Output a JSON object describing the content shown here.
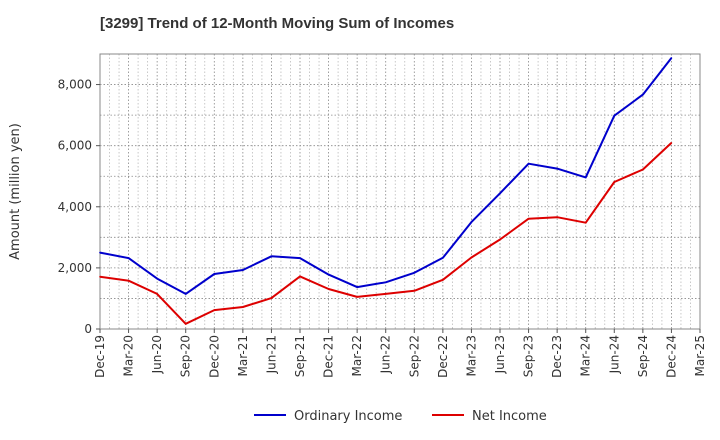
{
  "chart_data": {
    "type": "line",
    "title": "[3299]  Trend of 12-Month Moving Sum of Incomes",
    "xlabel": "",
    "ylabel": "Amount (million yen)",
    "ylim": [
      0,
      9000
    ],
    "y_ticks": [
      0,
      2000,
      4000,
      6000,
      8000
    ],
    "y_tick_labels": [
      "0",
      "2,000",
      "4,000",
      "6,000",
      "8,000"
    ],
    "categories": [
      "Dec-19",
      "Mar-20",
      "Jun-20",
      "Sep-20",
      "Dec-20",
      "Mar-21",
      "Jun-21",
      "Sep-21",
      "Dec-21",
      "Mar-22",
      "Jun-22",
      "Sep-22",
      "Dec-22",
      "Mar-23",
      "Jun-23",
      "Sep-23",
      "Dec-23",
      "Mar-24",
      "Jun-24",
      "Sep-24",
      "Dec-24",
      "Mar-25"
    ],
    "grid": true,
    "legend_position": "bottom",
    "series": [
      {
        "name": "Ordinary Income",
        "color": "#0000cc",
        "values": [
          2500,
          2320,
          1650,
          1150,
          1800,
          1930,
          2380,
          2320,
          1780,
          1370,
          1530,
          1840,
          2330,
          3500,
          4440,
          5410,
          5250,
          4960,
          6980,
          7670,
          8870,
          null
        ]
      },
      {
        "name": "Net Income",
        "color": "#dd0000",
        "values": [
          1710,
          1580,
          1150,
          170,
          620,
          720,
          1010,
          1720,
          1310,
          1050,
          1150,
          1250,
          1610,
          2340,
          2930,
          3610,
          3660,
          3480,
          4810,
          5220,
          6090,
          null
        ]
      }
    ]
  }
}
